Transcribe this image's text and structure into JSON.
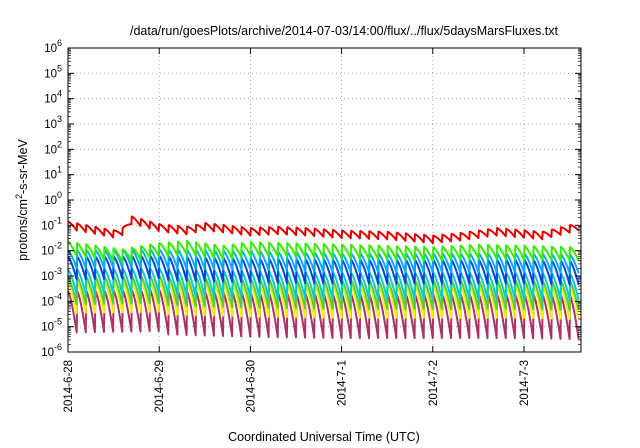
{
  "chart_data": {
    "type": "line",
    "title": "/data/run/goesPlots/archive/2014-07-03/14:00/flux/../flux/5daysMarsFluxes.txt",
    "xlabel": "Coordinated Universal Time (UTC)",
    "ylabel": "protons/cm2-s-sr-MeV",
    "yscale": "log",
    "ylim_exponent": [
      -6,
      6
    ],
    "y_ticks": [
      {
        "base": "10",
        "exp": "-6"
      },
      {
        "base": "10",
        "exp": "-5"
      },
      {
        "base": "10",
        "exp": "-4"
      },
      {
        "base": "10",
        "exp": "-3"
      },
      {
        "base": "10",
        "exp": "-2"
      },
      {
        "base": "10",
        "exp": "-1"
      },
      {
        "base": "10",
        "exp": "0"
      },
      {
        "base": "10",
        "exp": "1"
      },
      {
        "base": "10",
        "exp": "2"
      },
      {
        "base": "10",
        "exp": "3"
      },
      {
        "base": "10",
        "exp": "4"
      },
      {
        "base": "10",
        "exp": "5"
      },
      {
        "base": "10",
        "exp": "6"
      }
    ],
    "x_ticks": [
      "2014-6-28",
      "2014-6-29",
      "2014-6-30",
      "2014-7-1",
      "2014-7-2",
      "2014-7-3"
    ],
    "xlim_days": [
      0,
      5.6
    ],
    "grid": true,
    "sawtooth_period_days": 0.1,
    "series": [
      {
        "color": "#e00000",
        "log10_envelope": [
          [
            0.0,
            -0.85
          ],
          [
            0.5,
            -1.2
          ],
          [
            0.6,
            -1.1
          ],
          [
            0.7,
            -0.65
          ],
          [
            1.0,
            -0.95
          ],
          [
            1.3,
            -1.05
          ],
          [
            1.5,
            -0.9
          ],
          [
            2.0,
            -1.1
          ],
          [
            2.3,
            -1.05
          ],
          [
            2.6,
            -1.1
          ],
          [
            3.0,
            -1.2
          ],
          [
            3.5,
            -1.25
          ],
          [
            4.0,
            -1.4
          ],
          [
            4.3,
            -1.3
          ],
          [
            4.7,
            -1.1
          ],
          [
            5.2,
            -1.25
          ],
          [
            5.6,
            -0.9
          ]
        ],
        "drop": 0.3
      },
      {
        "color": "#33ee00",
        "log10_envelope": [
          [
            0.0,
            -1.65
          ],
          [
            0.6,
            -1.95
          ],
          [
            1.0,
            -1.7
          ],
          [
            1.3,
            -1.6
          ],
          [
            1.7,
            -1.8
          ],
          [
            2.0,
            -1.65
          ],
          [
            2.5,
            -1.7
          ],
          [
            3.0,
            -1.75
          ],
          [
            3.5,
            -1.8
          ],
          [
            4.0,
            -1.85
          ],
          [
            4.5,
            -1.75
          ],
          [
            5.0,
            -1.8
          ],
          [
            5.6,
            -1.85
          ]
        ],
        "drop": 0.55
      },
      {
        "color": "#00aaff",
        "log10_envelope": [
          [
            0.0,
            -2.0
          ],
          [
            1.0,
            -1.95
          ],
          [
            2.0,
            -2.0
          ],
          [
            3.0,
            -2.1
          ],
          [
            4.0,
            -2.1
          ],
          [
            5.0,
            -2.1
          ],
          [
            5.6,
            -2.15
          ]
        ],
        "drop": 0.75
      },
      {
        "color": "#0044dd",
        "log10_envelope": [
          [
            0.0,
            -2.25
          ],
          [
            1.0,
            -2.2
          ],
          [
            2.0,
            -2.3
          ],
          [
            3.0,
            -2.35
          ],
          [
            4.0,
            -2.35
          ],
          [
            5.0,
            -2.35
          ],
          [
            5.6,
            -2.4
          ]
        ],
        "drop": 0.95
      },
      {
        "color": "#00cccc",
        "log10_envelope": [
          [
            0.0,
            -2.75
          ],
          [
            1.0,
            -2.7
          ],
          [
            2.0,
            -2.8
          ],
          [
            3.0,
            -2.85
          ],
          [
            4.0,
            -2.85
          ],
          [
            5.0,
            -2.85
          ],
          [
            5.6,
            -2.9
          ]
        ],
        "drop": 1.05
      },
      {
        "color": "#55cc44",
        "log10_envelope": [
          [
            0.0,
            -3.05
          ],
          [
            1.0,
            -3.0
          ],
          [
            2.0,
            -3.1
          ],
          [
            3.0,
            -3.15
          ],
          [
            4.0,
            -3.15
          ],
          [
            5.0,
            -3.15
          ],
          [
            5.6,
            -3.2
          ]
        ],
        "drop": 1.15
      },
      {
        "color": "#f5f000",
        "log10_envelope": [
          [
            0.0,
            -3.25
          ],
          [
            1.0,
            -3.2
          ],
          [
            2.0,
            -3.3
          ],
          [
            3.0,
            -3.35
          ],
          [
            4.0,
            -3.35
          ],
          [
            5.0,
            -3.35
          ],
          [
            5.6,
            -3.4
          ]
        ],
        "drop": 1.3
      },
      {
        "color": "#aa3366",
        "log10_envelope": [
          [
            0.0,
            -3.6
          ],
          [
            1.0,
            -3.55
          ],
          [
            2.0,
            -3.65
          ],
          [
            3.0,
            -3.7
          ],
          [
            4.0,
            -3.7
          ],
          [
            5.0,
            -3.7
          ],
          [
            5.6,
            -3.75
          ]
        ],
        "drop": 1.75
      }
    ]
  }
}
